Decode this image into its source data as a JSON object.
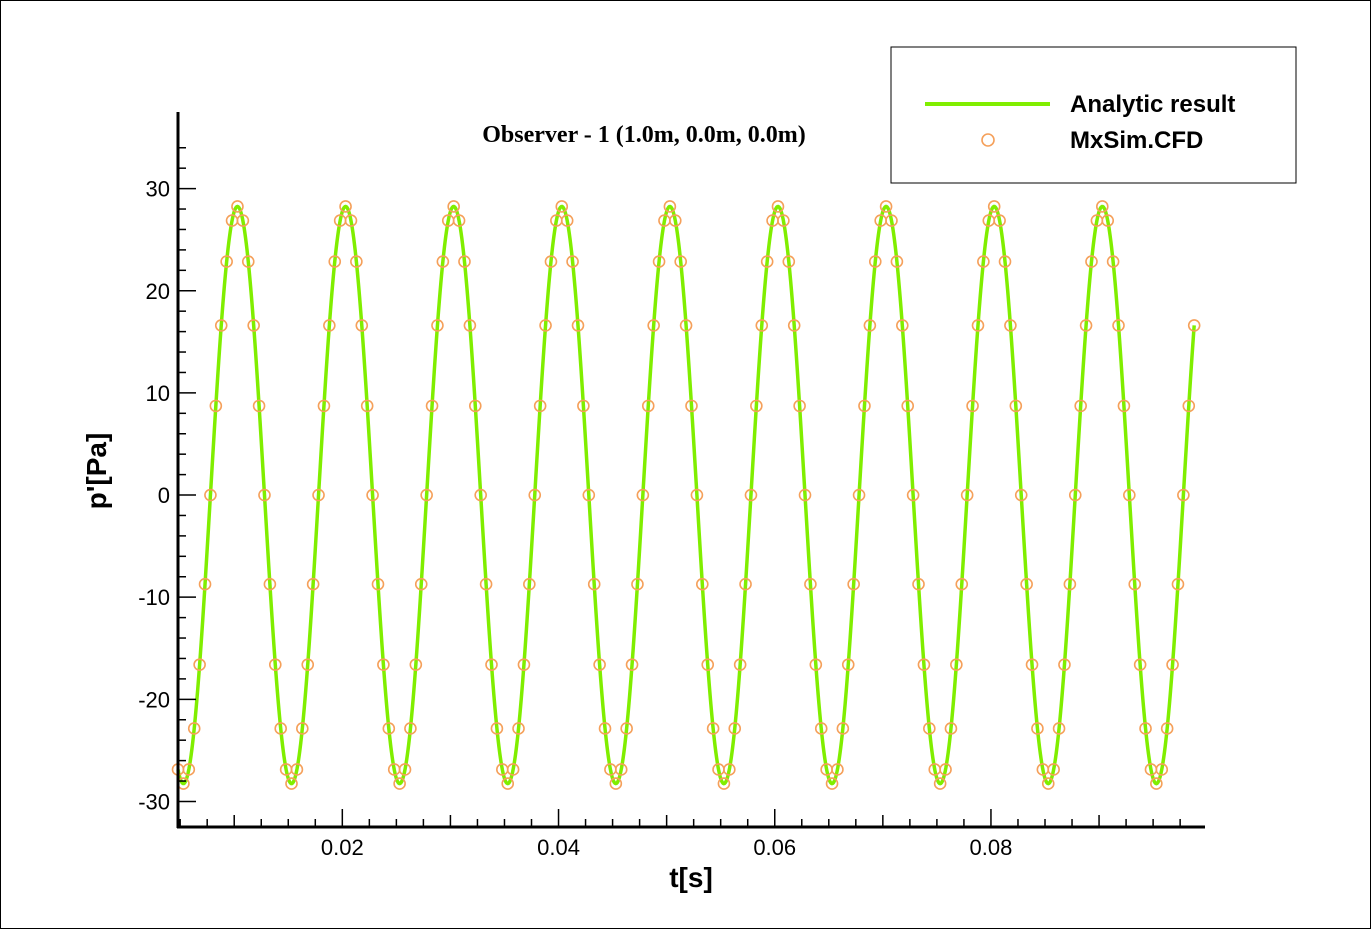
{
  "chart_data": {
    "type": "line",
    "title": "Observer - 1 (1.0m, 0.0m, 0.0m)",
    "xlabel": "t[s]",
    "ylabel": "p'[Pa]",
    "xlim": [
      0.0048,
      0.0998
    ],
    "ylim": [
      -32.5,
      37.5
    ],
    "x_ticks": [
      0.02,
      0.04,
      0.06,
      0.08
    ],
    "x_tick_labels": [
      "0.02",
      "0.04",
      "0.06",
      "0.08"
    ],
    "y_ticks": [
      30,
      20,
      10,
      0,
      -10,
      -20,
      -30
    ],
    "y_tick_labels": [
      "30",
      "20",
      "10",
      "0",
      "-10",
      "-20",
      "-30"
    ],
    "grid": false,
    "legend_position": "top-right",
    "series": [
      {
        "name": "Analytic result",
        "style": "line",
        "color": "#80ee00",
        "model": {
          "amplitude": 28.25,
          "frequency_hz": 100,
          "peak_time_s": 0.0103
        },
        "x_range": [
          0.0048,
          0.0988
        ]
      },
      {
        "name": "MxSim.CFD",
        "style": "open-circle-markers",
        "color": "#f5a05a",
        "model": {
          "amplitude": 28.25,
          "frequency_hz": 100,
          "peak_time_s": 0.0103
        },
        "sample_interval_s": 0.0005,
        "x_range": [
          0.0048,
          0.0988
        ]
      }
    ]
  }
}
